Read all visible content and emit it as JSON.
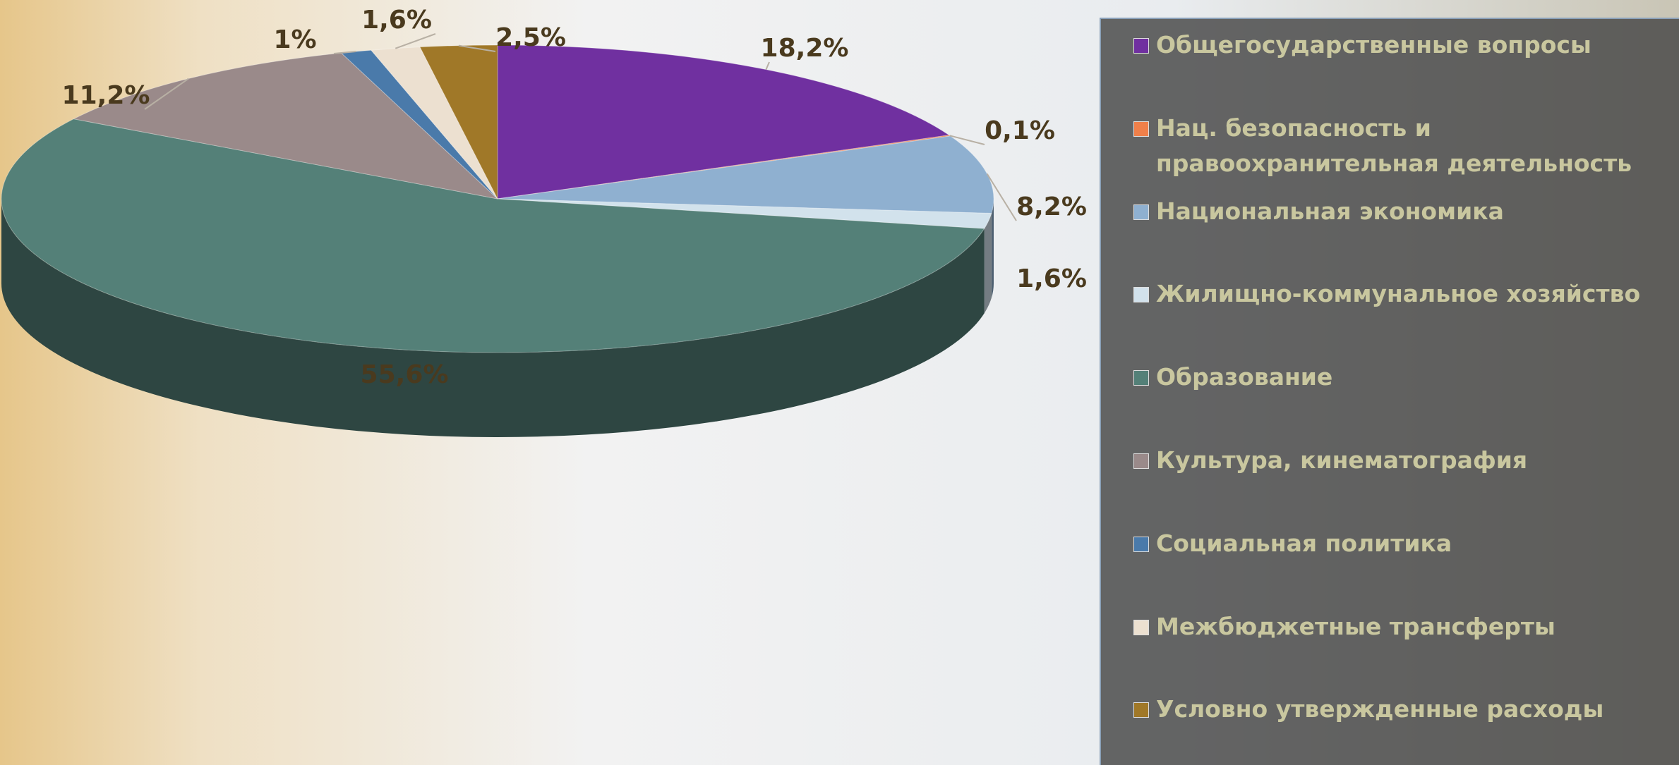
{
  "chart_data": {
    "type": "pie3d",
    "categories": [
      "Общегосударственные вопросы",
      "Нац. безопасность и правоохранительная деятельность",
      "Национальная экономика",
      "Жилищно-коммунальное хозяйство",
      "Образование",
      "Культура, кинематография",
      "Социальная политика",
      "Межбюджетные трансферты",
      "Условно утвержденные расходы"
    ],
    "values": [
      18.2,
      0.1,
      8.2,
      1.6,
      55.6,
      11.2,
      1,
      1.6,
      2.5
    ],
    "value_labels": [
      "18,2%",
      "0,1%",
      "8,2%",
      "1,6%",
      "55,6%",
      "11,2%",
      "1%",
      "1,6%",
      "2,5%"
    ],
    "colors": [
      "#7030a0",
      "#f0804a",
      "#8fb0d0",
      "#d2e2ec",
      "#548078",
      "#9a8a8a",
      "#4a7aaa",
      "#ece0d0",
      "#a07828"
    ],
    "legend": "right"
  }
}
